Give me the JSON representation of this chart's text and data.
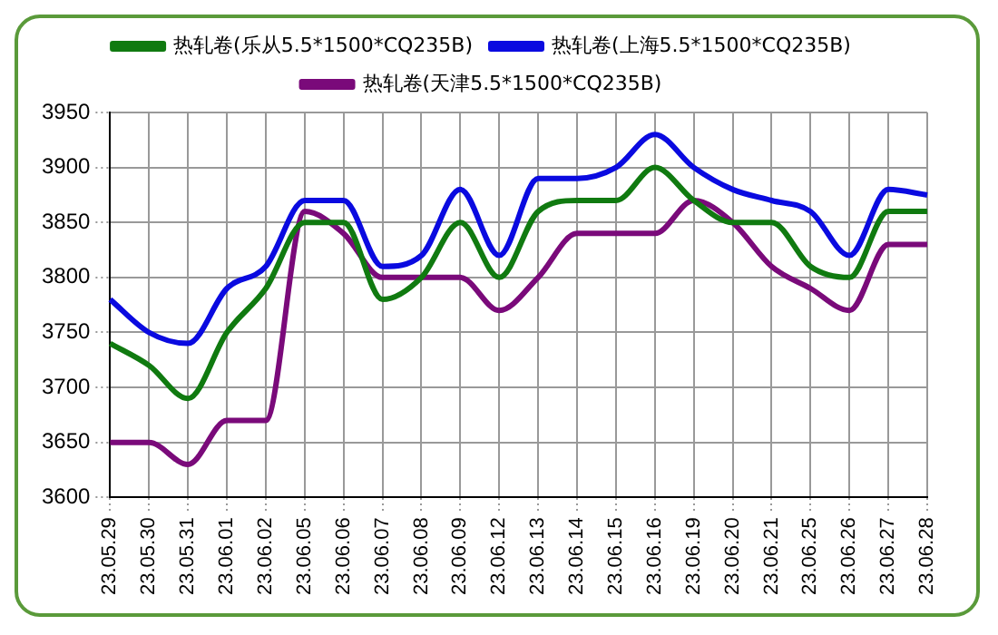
{
  "chart_data": {
    "type": "line",
    "categories": [
      "23.05.29",
      "23.05.30",
      "23.05.31",
      "23.06.01",
      "23.06.02",
      "23.06.05",
      "23.06.06",
      "23.06.07",
      "23.06.08",
      "23.06.09",
      "23.06.12",
      "23.06.13",
      "23.06.14",
      "23.06.15",
      "23.06.16",
      "23.06.19",
      "23.06.20",
      "23.06.21",
      "23.06.25",
      "23.06.26",
      "23.06.27",
      "23.06.28"
    ],
    "series": [
      {
        "name": "热轧卷(乐从5.5*1500*CQ235B)",
        "color": "#107a10",
        "values": [
          3740,
          3720,
          3690,
          3750,
          3790,
          3850,
          3850,
          3780,
          3800,
          3850,
          3800,
          3860,
          3870,
          3870,
          3900,
          3870,
          3850,
          3850,
          3810,
          3800,
          3860,
          3860
        ]
      },
      {
        "name": "热轧卷(上海5.5*1500*CQ235B)",
        "color": "#0a0ae0",
        "values": [
          3780,
          3750,
          3740,
          3790,
          3810,
          3870,
          3870,
          3810,
          3820,
          3880,
          3820,
          3890,
          3890,
          3900,
          3930,
          3900,
          3880,
          3870,
          3860,
          3820,
          3880,
          3875
        ]
      },
      {
        "name": "热轧卷(天津5.5*1500*CQ235B)",
        "color": "#7a0a7a",
        "values": [
          3650,
          3650,
          3630,
          3670,
          3670,
          3860,
          3840,
          3800,
          3800,
          3800,
          3770,
          3800,
          3840,
          3840,
          3840,
          3870,
          3850,
          3810,
          3790,
          3770,
          3830,
          3830
        ]
      }
    ],
    "ylim": [
      3600,
      3950
    ],
    "yticks": [
      3600,
      3650,
      3700,
      3750,
      3800,
      3850,
      3900,
      3950
    ],
    "grid": true,
    "legend": "top",
    "marker": "none",
    "line_style": "solid"
  }
}
